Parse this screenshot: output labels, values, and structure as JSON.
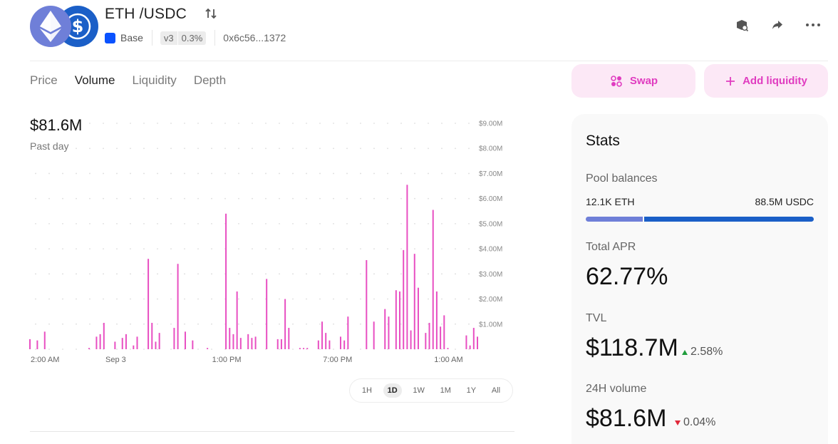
{
  "header": {
    "pair": "ETH /USDC",
    "chain": "Base",
    "version": "v3",
    "fee_tier": "0.3%",
    "address": "0x6c56...1372",
    "icons": [
      "explorer-icon",
      "share-icon",
      "more-icon"
    ]
  },
  "tabs": [
    {
      "label": "Price",
      "active": false
    },
    {
      "label": "Volume",
      "active": true
    },
    {
      "label": "Liquidity",
      "active": false
    },
    {
      "label": "Depth",
      "active": false
    }
  ],
  "actions": {
    "swap_label": "Swap",
    "add_liquidity_label": "Add liquidity"
  },
  "volume": {
    "headline": "$81.6M",
    "period": "Past day"
  },
  "time_ranges": [
    {
      "label": "1H",
      "active": false
    },
    {
      "label": "1D",
      "active": true
    },
    {
      "label": "1W",
      "active": false
    },
    {
      "label": "1M",
      "active": false
    },
    {
      "label": "1Y",
      "active": false
    },
    {
      "label": "All",
      "active": false
    }
  ],
  "chart_data": {
    "type": "bar",
    "color": "#e84fc2",
    "ylim": [
      0,
      9
    ],
    "y_unit": "$M",
    "y_ticks": [
      "$1.00M",
      "$2.00M",
      "$3.00M",
      "$4.00M",
      "$5.00M",
      "$6.00M",
      "$7.00M",
      "$8.00M",
      "$9.00M"
    ],
    "x_ticks": [
      "2:00 AM",
      "Sep 3",
      "1:00 PM",
      "7:00 PM",
      "1:00 AM"
    ],
    "x_tick_index": [
      0,
      23,
      53,
      83,
      113
    ],
    "values": [
      0.4,
      0,
      0.35,
      0,
      0.7,
      0,
      0,
      0,
      0,
      0,
      0,
      0,
      0,
      0,
      0,
      0,
      0.05,
      0,
      0.5,
      0.6,
      1.05,
      0,
      0,
      0.3,
      0,
      0.45,
      0.6,
      0,
      0.15,
      0.5,
      0,
      0,
      3.6,
      1.05,
      0.3,
      0.65,
      0,
      0,
      0,
      0.85,
      3.4,
      0,
      0.7,
      0,
      0.35,
      0,
      0,
      0,
      0.05,
      0,
      0,
      0,
      0,
      5.4,
      0.85,
      0.6,
      2.3,
      0.45,
      0,
      0.6,
      0.45,
      0.5,
      0,
      0,
      2.8,
      0,
      0,
      0.4,
      0.4,
      2.0,
      0.85,
      0,
      0,
      0.05,
      0.05,
      0.05,
      0,
      0,
      0.35,
      1.1,
      0.65,
      0.35,
      0,
      0,
      0.5,
      0.35,
      1.3,
      0,
      0,
      0,
      0,
      3.55,
      0,
      1.1,
      0,
      0,
      1.6,
      1.3,
      0,
      2.35,
      2.3,
      3.95,
      6.55,
      0.75,
      3.8,
      2.45,
      0,
      0.65,
      1.05,
      5.55,
      2.3,
      0.9,
      1.35,
      0.05,
      0,
      0,
      0,
      0,
      0.55,
      0.15,
      0.85,
      0.5
    ]
  },
  "stats": {
    "title": "Stats",
    "pool_balances_label": "Pool balances",
    "token0_balance": "12.1K ETH",
    "token1_balance": "88.5M USDC",
    "token0_share": 0.25,
    "tvl_label": "TVL",
    "tvl_value": "$118.7M",
    "tvl_change": "2.58%",
    "tvl_change_dir": "up",
    "apr_label": "Total APR",
    "apr_value": "62.77%",
    "vol_label": "24H volume",
    "vol_value": "$81.6M",
    "vol_change": "0.04%",
    "vol_change_dir": "down",
    "colors": {
      "eth": "#6f7fd8",
      "usdc": "#1b5fc7",
      "up": "#1f9d3c",
      "down": "#e0283a"
    }
  }
}
